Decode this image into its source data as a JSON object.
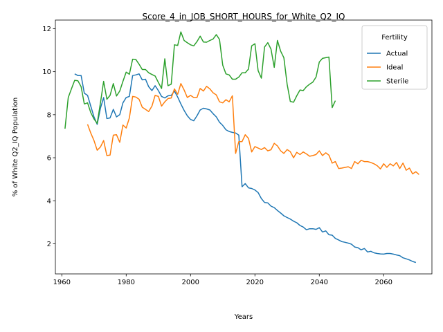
{
  "chart_data": {
    "type": "line",
    "title": "Score_4_in_JOB_SHORT_HOURS_for_White_Q2_IQ",
    "xlabel": "Years",
    "ylabel": "% of White Q2_IQ Population",
    "xlim": [
      1958,
      2075
    ],
    "ylim": [
      0.6,
      12.4
    ],
    "xticks": [
      1960,
      1980,
      2000,
      2020,
      2040,
      2060
    ],
    "yticks": [
      2,
      4,
      6,
      8,
      10,
      12
    ],
    "grid": false,
    "legend": {
      "title": "Fertility",
      "placement": "top-right"
    },
    "series": [
      {
        "name": "Actual",
        "color": "#1f77b4",
        "points": [
          [
            1964,
            9.9
          ],
          [
            1965,
            9.82
          ],
          [
            1966,
            9.82
          ],
          [
            1967,
            9.0
          ],
          [
            1968,
            8.9
          ],
          [
            1969,
            8.4
          ],
          [
            1970,
            7.9
          ],
          [
            1971,
            7.55
          ],
          [
            1972,
            8.3
          ],
          [
            1973,
            8.8
          ],
          [
            1974,
            7.82
          ],
          [
            1975,
            7.85
          ],
          [
            1976,
            8.25
          ],
          [
            1977,
            7.9
          ],
          [
            1978,
            8.0
          ],
          [
            1979,
            8.55
          ],
          [
            1980,
            8.8
          ],
          [
            1981,
            8.85
          ],
          [
            1982,
            9.82
          ],
          [
            1983,
            9.85
          ],
          [
            1984,
            9.9
          ],
          [
            1985,
            9.62
          ],
          [
            1986,
            9.65
          ],
          [
            1987,
            9.3
          ],
          [
            1988,
            9.12
          ],
          [
            1989,
            9.35
          ],
          [
            1990,
            9.12
          ],
          [
            1991,
            8.85
          ],
          [
            1992,
            8.78
          ],
          [
            1993,
            8.88
          ],
          [
            1994,
            8.9
          ],
          [
            1995,
            9.1
          ],
          [
            1996,
            8.82
          ],
          [
            1997,
            8.5
          ],
          [
            1998,
            8.2
          ],
          [
            1999,
            7.95
          ],
          [
            2000,
            7.78
          ],
          [
            2001,
            7.72
          ],
          [
            2002,
            7.95
          ],
          [
            2003,
            8.22
          ],
          [
            2004,
            8.3
          ],
          [
            2005,
            8.27
          ],
          [
            2006,
            8.22
          ],
          [
            2007,
            8.05
          ],
          [
            2008,
            7.9
          ],
          [
            2009,
            7.65
          ],
          [
            2010,
            7.5
          ],
          [
            2011,
            7.3
          ],
          [
            2012,
            7.22
          ],
          [
            2013,
            7.18
          ],
          [
            2014,
            7.15
          ],
          [
            2015,
            7.05
          ],
          [
            2016,
            4.65
          ],
          [
            2017,
            4.8
          ],
          [
            2018,
            4.6
          ],
          [
            2019,
            4.57
          ],
          [
            2020,
            4.5
          ],
          [
            2021,
            4.38
          ],
          [
            2022,
            4.1
          ],
          [
            2023,
            3.92
          ],
          [
            2024,
            3.9
          ],
          [
            2025,
            3.75
          ],
          [
            2026,
            3.68
          ],
          [
            2027,
            3.55
          ],
          [
            2028,
            3.43
          ],
          [
            2029,
            3.3
          ],
          [
            2030,
            3.22
          ],
          [
            2031,
            3.15
          ],
          [
            2032,
            3.05
          ],
          [
            2033,
            2.98
          ],
          [
            2034,
            2.85
          ],
          [
            2035,
            2.78
          ],
          [
            2036,
            2.65
          ],
          [
            2037,
            2.7
          ],
          [
            2038,
            2.7
          ],
          [
            2039,
            2.67
          ],
          [
            2040,
            2.75
          ],
          [
            2041,
            2.55
          ],
          [
            2042,
            2.6
          ],
          [
            2043,
            2.42
          ],
          [
            2044,
            2.4
          ],
          [
            2045,
            2.25
          ],
          [
            2046,
            2.18
          ],
          [
            2047,
            2.1
          ],
          [
            2048,
            2.07
          ],
          [
            2049,
            2.03
          ],
          [
            2050,
            1.98
          ],
          [
            2051,
            1.85
          ],
          [
            2052,
            1.82
          ],
          [
            2053,
            1.72
          ],
          [
            2054,
            1.78
          ],
          [
            2055,
            1.62
          ],
          [
            2056,
            1.65
          ],
          [
            2057,
            1.58
          ],
          [
            2058,
            1.55
          ],
          [
            2059,
            1.53
          ],
          [
            2060,
            1.52
          ],
          [
            2061,
            1.55
          ],
          [
            2062,
            1.55
          ],
          [
            2063,
            1.52
          ],
          [
            2064,
            1.48
          ],
          [
            2065,
            1.45
          ],
          [
            2066,
            1.35
          ],
          [
            2067,
            1.3
          ],
          [
            2068,
            1.25
          ],
          [
            2069,
            1.18
          ],
          [
            2070,
            1.13
          ]
        ]
      },
      {
        "name": "Ideal",
        "color": "#ff7f0e",
        "points": [
          [
            1968,
            7.55
          ],
          [
            1969,
            7.15
          ],
          [
            1970,
            6.8
          ],
          [
            1971,
            6.35
          ],
          [
            1972,
            6.5
          ],
          [
            1973,
            6.8
          ],
          [
            1974,
            6.1
          ],
          [
            1975,
            6.12
          ],
          [
            1976,
            7.05
          ],
          [
            1977,
            7.07
          ],
          [
            1978,
            6.72
          ],
          [
            1979,
            7.52
          ],
          [
            1980,
            7.38
          ],
          [
            1981,
            7.85
          ],
          [
            1982,
            8.85
          ],
          [
            1983,
            8.82
          ],
          [
            1984,
            8.72
          ],
          [
            1985,
            8.35
          ],
          [
            1986,
            8.25
          ],
          [
            1987,
            8.15
          ],
          [
            1988,
            8.4
          ],
          [
            1989,
            8.9
          ],
          [
            1990,
            8.85
          ],
          [
            1991,
            8.4
          ],
          [
            1992,
            8.6
          ],
          [
            1993,
            8.75
          ],
          [
            1994,
            8.78
          ],
          [
            1995,
            9.2
          ],
          [
            1996,
            8.95
          ],
          [
            1997,
            9.45
          ],
          [
            1998,
            9.15
          ],
          [
            1999,
            8.8
          ],
          [
            2000,
            8.9
          ],
          [
            2001,
            8.8
          ],
          [
            2002,
            8.8
          ],
          [
            2003,
            9.22
          ],
          [
            2004,
            9.1
          ],
          [
            2005,
            9.32
          ],
          [
            2006,
            9.2
          ],
          [
            2007,
            9.02
          ],
          [
            2008,
            8.92
          ],
          [
            2009,
            8.6
          ],
          [
            2010,
            8.55
          ],
          [
            2011,
            8.7
          ],
          [
            2012,
            8.6
          ],
          [
            2013,
            8.88
          ],
          [
            2014,
            6.2
          ],
          [
            2015,
            6.75
          ],
          [
            2016,
            6.75
          ],
          [
            2017,
            7.07
          ],
          [
            2018,
            6.9
          ],
          [
            2019,
            6.27
          ],
          [
            2020,
            6.52
          ],
          [
            2021,
            6.45
          ],
          [
            2022,
            6.38
          ],
          [
            2023,
            6.47
          ],
          [
            2024,
            6.32
          ],
          [
            2025,
            6.37
          ],
          [
            2026,
            6.67
          ],
          [
            2027,
            6.55
          ],
          [
            2028,
            6.32
          ],
          [
            2029,
            6.2
          ],
          [
            2030,
            6.38
          ],
          [
            2031,
            6.28
          ],
          [
            2032,
            6.0
          ],
          [
            2033,
            6.25
          ],
          [
            2034,
            6.15
          ],
          [
            2035,
            6.27
          ],
          [
            2036,
            6.18
          ],
          [
            2037,
            6.07
          ],
          [
            2038,
            6.1
          ],
          [
            2039,
            6.15
          ],
          [
            2040,
            6.32
          ],
          [
            2041,
            6.1
          ],
          [
            2042,
            6.23
          ],
          [
            2043,
            6.12
          ],
          [
            2044,
            5.75
          ],
          [
            2045,
            5.82
          ],
          [
            2046,
            5.5
          ],
          [
            2047,
            5.52
          ],
          [
            2048,
            5.55
          ],
          [
            2049,
            5.58
          ],
          [
            2050,
            5.5
          ],
          [
            2051,
            5.82
          ],
          [
            2052,
            5.72
          ],
          [
            2053,
            5.88
          ],
          [
            2054,
            5.82
          ],
          [
            2055,
            5.82
          ],
          [
            2056,
            5.78
          ],
          [
            2057,
            5.72
          ],
          [
            2058,
            5.63
          ],
          [
            2059,
            5.48
          ],
          [
            2060,
            5.72
          ],
          [
            2061,
            5.55
          ],
          [
            2062,
            5.72
          ],
          [
            2063,
            5.62
          ],
          [
            2064,
            5.78
          ],
          [
            2065,
            5.5
          ],
          [
            2066,
            5.75
          ],
          [
            2067,
            5.42
          ],
          [
            2068,
            5.52
          ],
          [
            2069,
            5.25
          ],
          [
            2070,
            5.35
          ],
          [
            2071,
            5.22
          ]
        ]
      },
      {
        "name": "Sterile",
        "color": "#2ca02c",
        "points": [
          [
            1961,
            7.35
          ],
          [
            1962,
            8.8
          ],
          [
            1963,
            9.2
          ],
          [
            1964,
            9.6
          ],
          [
            1965,
            9.58
          ],
          [
            1966,
            9.3
          ],
          [
            1967,
            8.5
          ],
          [
            1968,
            8.55
          ],
          [
            1969,
            8.1
          ],
          [
            1970,
            7.8
          ],
          [
            1971,
            7.6
          ],
          [
            1972,
            8.55
          ],
          [
            1973,
            9.55
          ],
          [
            1974,
            8.72
          ],
          [
            1975,
            8.9
          ],
          [
            1976,
            9.45
          ],
          [
            1977,
            8.87
          ],
          [
            1978,
            9.1
          ],
          [
            1979,
            9.55
          ],
          [
            1980,
            9.98
          ],
          [
            1981,
            9.88
          ],
          [
            1982,
            10.58
          ],
          [
            1983,
            10.57
          ],
          [
            1984,
            10.35
          ],
          [
            1985,
            10.1
          ],
          [
            1986,
            10.1
          ],
          [
            1987,
            9.95
          ],
          [
            1988,
            9.87
          ],
          [
            1989,
            9.8
          ],
          [
            1990,
            9.5
          ],
          [
            1991,
            9.22
          ],
          [
            1992,
            10.6
          ],
          [
            1993,
            9.35
          ],
          [
            1994,
            9.42
          ],
          [
            1995,
            11.25
          ],
          [
            1996,
            11.22
          ],
          [
            1997,
            11.85
          ],
          [
            1998,
            11.45
          ],
          [
            1999,
            11.35
          ],
          [
            2000,
            11.25
          ],
          [
            2001,
            11.2
          ],
          [
            2002,
            11.4
          ],
          [
            2003,
            11.65
          ],
          [
            2004,
            11.38
          ],
          [
            2005,
            11.37
          ],
          [
            2006,
            11.45
          ],
          [
            2007,
            11.52
          ],
          [
            2008,
            11.72
          ],
          [
            2009,
            11.5
          ],
          [
            2010,
            10.3
          ],
          [
            2011,
            9.9
          ],
          [
            2012,
            9.85
          ],
          [
            2013,
            9.65
          ],
          [
            2014,
            9.65
          ],
          [
            2015,
            9.75
          ],
          [
            2016,
            9.95
          ],
          [
            2017,
            9.95
          ],
          [
            2018,
            10.12
          ],
          [
            2019,
            11.2
          ],
          [
            2020,
            11.3
          ],
          [
            2021,
            10.05
          ],
          [
            2022,
            9.7
          ],
          [
            2023,
            11.15
          ],
          [
            2024,
            11.35
          ],
          [
            2025,
            11.05
          ],
          [
            2026,
            10.2
          ],
          [
            2027,
            11.45
          ],
          [
            2028,
            10.95
          ],
          [
            2029,
            10.65
          ],
          [
            2030,
            9.42
          ],
          [
            2031,
            8.62
          ],
          [
            2032,
            8.58
          ],
          [
            2033,
            8.88
          ],
          [
            2034,
            9.15
          ],
          [
            2035,
            9.12
          ],
          [
            2036,
            9.3
          ],
          [
            2037,
            9.42
          ],
          [
            2038,
            9.52
          ],
          [
            2039,
            9.75
          ],
          [
            2040,
            10.45
          ],
          [
            2041,
            10.62
          ],
          [
            2042,
            10.65
          ],
          [
            2043,
            10.68
          ],
          [
            2044,
            8.33
          ],
          [
            2045,
            8.65
          ]
        ]
      }
    ]
  }
}
